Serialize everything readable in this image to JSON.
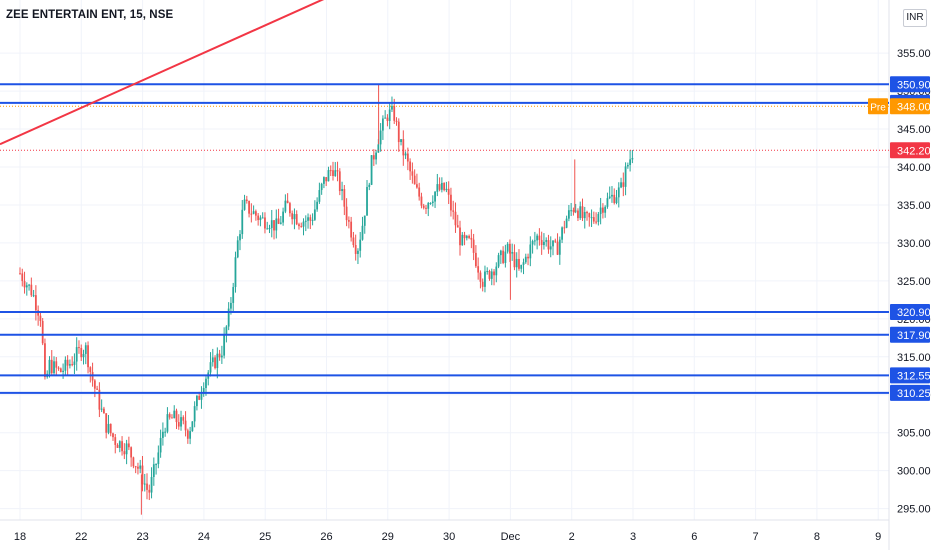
{
  "title": "ZEE ENTERTAIN ENT, 15, NSE",
  "currency": "INR",
  "colors": {
    "up": "#26a69a",
    "down": "#ef5350",
    "level": "#1e53e5",
    "trend": "#f23645",
    "pre": "#ff9800",
    "last": "#f23645",
    "grid": "#f0f3fa",
    "axisText": "#131722"
  },
  "chart_data": {
    "type": "candlestick",
    "ylim": [
      293.5,
      362
    ],
    "y_ticks": [
      "295.00",
      "300.00",
      "305.00",
      "310.00",
      "315.00",
      "320.00",
      "325.00",
      "330.00",
      "335.00",
      "340.00",
      "345.00",
      "350.00",
      "355.00"
    ],
    "x_ticks": [
      "18",
      "22",
      "23",
      "24",
      "25",
      "26",
      "29",
      "30",
      "Dec",
      "2",
      "3",
      "6",
      "7",
      "8",
      "9"
    ],
    "horizontal_levels": [
      "350.90",
      "348.45",
      "320.90",
      "317.90",
      "312.55",
      "310.25"
    ],
    "pre_market": {
      "tag": "Pre",
      "value": "348.00"
    },
    "last_price": "342.20",
    "trendline": {
      "start": {
        "x_index": 0,
        "y": 343.0
      },
      "end": {
        "x_index": 5.8,
        "y": 364.0
      }
    },
    "close_path": [
      [
        0,
        326
      ],
      [
        0.2,
        323.5
      ],
      [
        0.35,
        320
      ],
      [
        0.4,
        311
      ],
      [
        0.48,
        314
      ],
      [
        0.65,
        313
      ],
      [
        0.8,
        314
      ],
      [
        1.0,
        316
      ],
      [
        1.08,
        316
      ],
      [
        1.15,
        313
      ],
      [
        1.25,
        310
      ],
      [
        1.4,
        306
      ],
      [
        1.55,
        304
      ],
      [
        1.75,
        303
      ],
      [
        1.95,
        300
      ],
      [
        2.1,
        297
      ],
      [
        2.25,
        302
      ],
      [
        2.35,
        306
      ],
      [
        2.5,
        307
      ],
      [
        2.65,
        306
      ],
      [
        2.75,
        305
      ],
      [
        2.85,
        308
      ],
      [
        3.0,
        312
      ],
      [
        3.15,
        314
      ],
      [
        3.3,
        316
      ],
      [
        3.42,
        321
      ],
      [
        3.55,
        330
      ],
      [
        3.65,
        335
      ],
      [
        3.8,
        334
      ],
      [
        3.95,
        333
      ],
      [
        4.05,
        333
      ],
      [
        4.2,
        332
      ],
      [
        4.35,
        335
      ],
      [
        4.55,
        333
      ],
      [
        4.75,
        333
      ],
      [
        4.95,
        338
      ],
      [
        5.1,
        340
      ],
      [
        5.2,
        338
      ],
      [
        5.35,
        333
      ],
      [
        5.5,
        329
      ],
      [
        5.6,
        333
      ],
      [
        5.72,
        340
      ],
      [
        5.85,
        344
      ],
      [
        6.0,
        347
      ],
      [
        6.1,
        347
      ],
      [
        6.2,
        343
      ],
      [
        6.3,
        341
      ],
      [
        6.45,
        337
      ],
      [
        6.6,
        335
      ],
      [
        6.8,
        337
      ],
      [
        6.95,
        337
      ],
      [
        7.05,
        334
      ],
      [
        7.2,
        330
      ],
      [
        7.35,
        330
      ],
      [
        7.55,
        325
      ],
      [
        7.75,
        327
      ],
      [
        7.95,
        329
      ],
      [
        8.05,
        328
      ],
      [
        8.15,
        326
      ],
      [
        8.3,
        329
      ],
      [
        8.45,
        331
      ],
      [
        8.6,
        330
      ],
      [
        8.75,
        329
      ],
      [
        8.9,
        333
      ],
      [
        9.05,
        335
      ],
      [
        9.2,
        333
      ],
      [
        9.35,
        333
      ],
      [
        9.5,
        335
      ],
      [
        9.65,
        336
      ],
      [
        9.8,
        337
      ],
      [
        9.9,
        340
      ],
      [
        10.0,
        342.2
      ]
    ]
  }
}
